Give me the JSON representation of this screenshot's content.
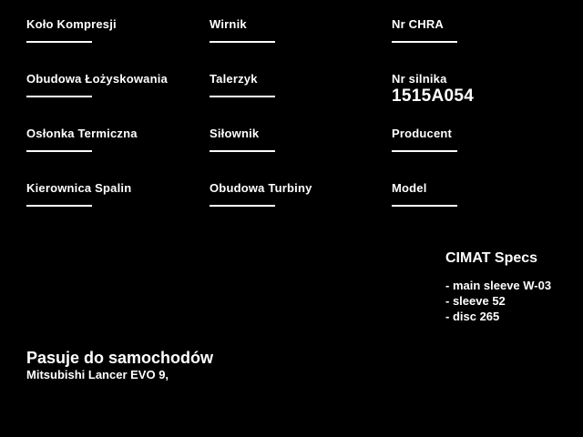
{
  "page": {
    "background_color": "#000000",
    "text_color": "#ffffff"
  },
  "fields": [
    {
      "label": "Koło Kompresji",
      "value": ""
    },
    {
      "label": "Wirnik",
      "value": ""
    },
    {
      "label": "Nr CHRA",
      "value": ""
    },
    {
      "label": "Obudowa Łożyskowania",
      "value": ""
    },
    {
      "label": "Talerzyk",
      "value": ""
    },
    {
      "label": "Nr silnika",
      "value": "1515A054"
    },
    {
      "label": "Osłonka Termiczna",
      "value": ""
    },
    {
      "label": "Siłownik",
      "value": ""
    },
    {
      "label": "Producent",
      "value": ""
    },
    {
      "label": "Kierownica Spalin",
      "value": ""
    },
    {
      "label": "Obudowa Turbiny",
      "value": ""
    },
    {
      "label": "Model",
      "value": ""
    }
  ],
  "specs": {
    "title": "CIMAT Specs",
    "items": [
      "- main sleeve W-03",
      "- sleeve 52",
      "- disc 265"
    ]
  },
  "fitment": {
    "title": "Pasuje do samochodów",
    "cars": "Mitsubishi Lancer EVO 9,"
  }
}
